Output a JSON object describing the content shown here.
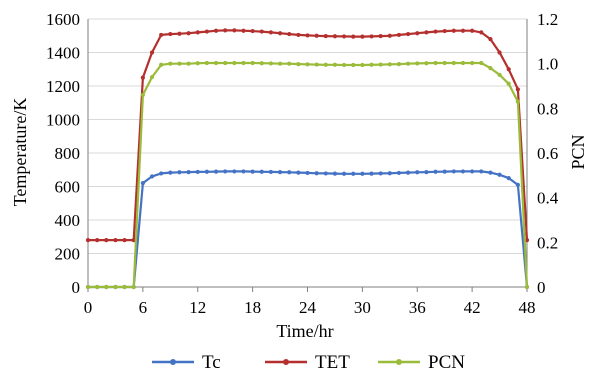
{
  "chart_data": {
    "type": "line",
    "xlabel": "Time/hr",
    "ylabel": "Temperature/K",
    "y2label": "PCN",
    "xlim": [
      0,
      48
    ],
    "ylim": [
      0,
      1600
    ],
    "y2lim": [
      0,
      1.2
    ],
    "xticks": [
      "0",
      "6",
      "12",
      "18",
      "24",
      "30",
      "36",
      "42",
      "48"
    ],
    "yticks": [
      "0",
      "200",
      "400",
      "600",
      "800",
      "1000",
      "1200",
      "1400",
      "1600"
    ],
    "y2ticks": [
      "0",
      "0.2",
      "0.4",
      "0.6",
      "0.8",
      "1.0",
      "1.2"
    ],
    "grid": "horizontal",
    "legend_position": "bottom",
    "x": [
      0,
      1,
      2,
      3,
      4,
      5,
      6,
      7,
      8,
      9,
      10,
      11,
      12,
      13,
      14,
      15,
      16,
      17,
      18,
      19,
      20,
      21,
      22,
      23,
      24,
      25,
      26,
      27,
      28,
      29,
      30,
      31,
      32,
      33,
      34,
      35,
      36,
      37,
      38,
      39,
      40,
      41,
      42,
      43,
      44,
      45,
      46,
      47,
      48
    ],
    "series": [
      {
        "name": "Tc",
        "axis": "left",
        "color": "#4472c4",
        "values": [
          0,
          0,
          0,
          0,
          0,
          0,
          620,
          660,
          678,
          683,
          685,
          686,
          687,
          688,
          689,
          690,
          690,
          690,
          689,
          688,
          687,
          686,
          685,
          683,
          681,
          679,
          678,
          677,
          676,
          676,
          676,
          677,
          678,
          679,
          681,
          683,
          685,
          686,
          688,
          689,
          690,
          690,
          690,
          690,
          683,
          670,
          650,
          610,
          0
        ]
      },
      {
        "name": "TET",
        "axis": "left",
        "color": "#b4302f",
        "values": [
          280,
          280,
          280,
          280,
          280,
          280,
          1250,
          1400,
          1505,
          1510,
          1512,
          1515,
          1520,
          1525,
          1530,
          1532,
          1532,
          1530,
          1528,
          1525,
          1520,
          1515,
          1510,
          1505,
          1502,
          1500,
          1498,
          1497,
          1496,
          1495,
          1495,
          1496,
          1498,
          1500,
          1505,
          1510,
          1515,
          1520,
          1525,
          1528,
          1530,
          1530,
          1530,
          1520,
          1480,
          1400,
          1300,
          1180,
          280
        ]
      },
      {
        "name": "PCN",
        "axis": "right",
        "color": "#9bbb3a",
        "values": [
          0,
          0,
          0,
          0,
          0,
          0,
          0.86,
          0.94,
          0.995,
          1.0,
          1.0,
          1.0,
          1.002,
          1.003,
          1.003,
          1.003,
          1.003,
          1.003,
          1.003,
          1.002,
          1.001,
          1.0,
          1.0,
          0.998,
          0.997,
          0.996,
          0.995,
          0.995,
          0.994,
          0.994,
          0.994,
          0.995,
          0.996,
          0.997,
          0.998,
          1.0,
          1.001,
          1.002,
          1.003,
          1.003,
          1.003,
          1.003,
          1.003,
          1.003,
          0.98,
          0.95,
          0.91,
          0.83,
          0.0
        ]
      }
    ]
  }
}
